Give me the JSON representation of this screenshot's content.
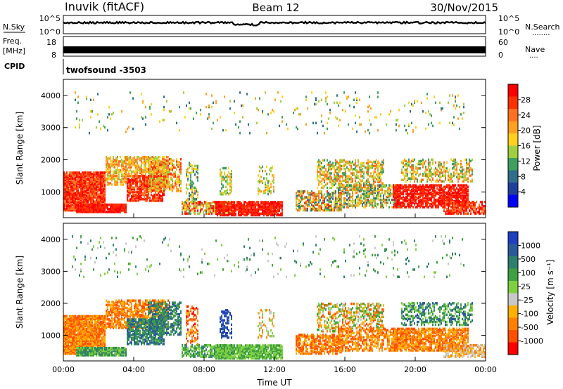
{
  "header": {
    "station": "Inuvik (fitACF)",
    "beam": "Beam 12",
    "date": "30/Nov/2015"
  },
  "sky_panel": {
    "left_label": "N.Sky",
    "left_ticks": [
      "10^5",
      "10^0"
    ],
    "right_ticks": [
      "10^5",
      "10^0"
    ],
    "right_label": "N.Search",
    "right_dots": "........"
  },
  "freq_panel": {
    "left_label_1": "Freq.",
    "left_label_2": "[MHz]",
    "left_ticks": [
      "18",
      "8"
    ],
    "right_ticks": [
      "60",
      "0"
    ],
    "right_label": "Nave",
    "right_dots": "...."
  },
  "cpid": {
    "label": "CPID",
    "text": "twofsound  -3503"
  },
  "colors": {
    "power_scale": [
      "#0000ff",
      "#1f3f9a",
      "#2f6f8a",
      "#3f9f5f",
      "#9fcf3f",
      "#ffd020",
      "#ffa020",
      "#ff7020",
      "#ff3000",
      "#ff0000"
    ],
    "velocity_scale": [
      "#ff0000",
      "#ff5000",
      "#ff8000",
      "#ffb000",
      "#c8c8c8",
      "#7fd040",
      "#3fa040",
      "#2f7f6f",
      "#2a5a9a",
      "#1f3fc0"
    ]
  },
  "chart_data": [
    {
      "type": "heatmap",
      "title": "Power",
      "ylabel": "Slant Range [km]",
      "ylim": [
        200,
        4500
      ],
      "y_ticks": [
        "1000",
        "2000",
        "3000",
        "4000"
      ],
      "x_ticks": [
        "00:00",
        "04:00",
        "08:00",
        "12:00",
        "16:00",
        "20:00",
        "00:00"
      ],
      "colorbar_label": "Power [dB]",
      "colorbar_ticks": [
        "28",
        "24",
        "20",
        "16",
        "12",
        "8",
        "4"
      ],
      "colorbar_range": [
        0,
        32
      ]
    },
    {
      "type": "heatmap",
      "title": "Velocity",
      "ylabel": "Slant Range [km]",
      "ylim": [
        200,
        4500
      ],
      "y_ticks": [
        "1000",
        "2000",
        "3000",
        "4000"
      ],
      "x_ticks": [
        "00:00",
        "04:00",
        "08:00",
        "12:00",
        "16:00",
        "20:00",
        "00:00"
      ],
      "xlabel": "Time UT",
      "colorbar_label": "Velocity [m s⁻¹]",
      "colorbar_ticks": [
        "1000",
        "500",
        "100",
        "25",
        "-25",
        "-100",
        "-500",
        "-1000"
      ]
    }
  ]
}
